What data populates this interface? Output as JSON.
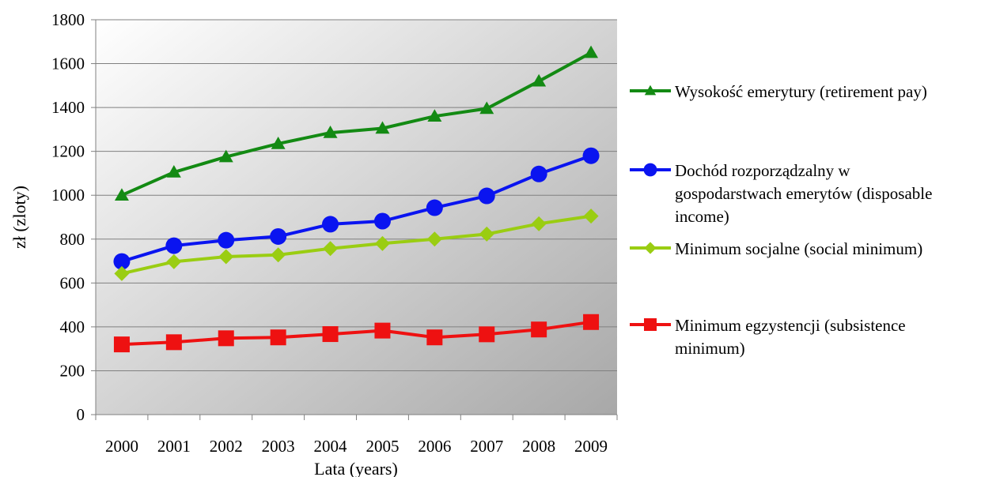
{
  "chart_data": {
    "type": "line",
    "title": "",
    "xlabel": "Lata (years)",
    "ylabel": "zł (zloty)",
    "ylim": [
      0,
      1800
    ],
    "yticks": [
      0,
      200,
      400,
      600,
      800,
      1000,
      1200,
      1400,
      1600,
      1800
    ],
    "categories": [
      "2000",
      "2001",
      "2002",
      "2003",
      "2004",
      "2005",
      "2006",
      "2007",
      "2008",
      "2009"
    ],
    "grid": "horizontal",
    "legend_position": "right",
    "series": [
      {
        "name": "Wysokość emerytury (retirement pay)",
        "legend_lines": [
          "Wysokość emerytury (retirement pay)"
        ],
        "color": "#138a13",
        "marker": "triangle",
        "values": [
          1000,
          1105,
          1175,
          1235,
          1285,
          1305,
          1360,
          1395,
          1520,
          1650
        ]
      },
      {
        "name": "Dochód rozporządzalny w gospodarstwach emerytów (disposable income)",
        "legend_lines": [
          "Dochód rozporządzalny w",
          "gospodarstwach emerytów (disposable",
          "income)"
        ],
        "color": "#0a14f0",
        "marker": "circle",
        "values": [
          698,
          770,
          795,
          812,
          868,
          882,
          943,
          997,
          1097,
          1180
        ]
      },
      {
        "name": "Minimum socjalne (social minimum)",
        "legend_lines": [
          "Minimum socjalne (social minimum)"
        ],
        "color": "#9acd12",
        "marker": "diamond",
        "values": [
          643,
          697,
          720,
          728,
          757,
          780,
          800,
          823,
          870,
          905
        ]
      },
      {
        "name": "Minimum egzystencji (subsistence minimum)",
        "legend_lines": [
          "Minimum egzystencji (subsistence",
          "minimum)"
        ],
        "color": "#ee1111",
        "marker": "square",
        "values": [
          320,
          330,
          348,
          352,
          367,
          383,
          352,
          366,
          388,
          422
        ]
      }
    ]
  }
}
